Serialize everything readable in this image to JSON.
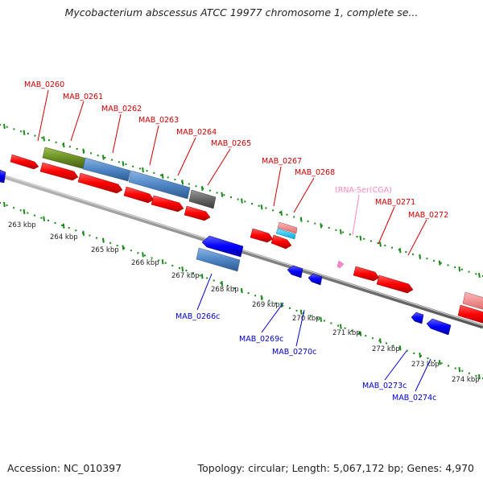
{
  "title": "Mycobacterium abscessus ATCC 19977 chromosome 1, complete se...",
  "footer": {
    "accession": "Accession: NC_010397",
    "summary": "Topology: circular; Length: 5,067,172 bp; Genes: 4,970"
  },
  "colors": {
    "forward_gene": "#ff0000",
    "reverse_gene": "#0000ff",
    "cds_block": "#4f86c6",
    "rrna_green": "#6b8e23",
    "pseudo_grey": "#666666",
    "trna_pink": "#ff88cc",
    "forward_label": "#cc0000",
    "reverse_label": "#0000cc",
    "trna_label": "#ff88bb",
    "tick_green": "#1a8a1a"
  },
  "diagram": {
    "forward_labels": [
      {
        "text": "MAB_0260"
      },
      {
        "text": "MAB_0261"
      },
      {
        "text": "MAB_0262"
      },
      {
        "text": "MAB_0263"
      },
      {
        "text": "MAB_0264"
      },
      {
        "text": "MAB_0265"
      },
      {
        "text": "MAB_0267"
      },
      {
        "text": "MAB_0268"
      },
      {
        "text": "tRNA-Ser(CGA)"
      },
      {
        "text": "MAB_0271"
      },
      {
        "text": "MAB_0272"
      }
    ],
    "reverse_labels": [
      {
        "text": "MAB_0266c"
      },
      {
        "text": "MAB_0269c"
      },
      {
        "text": "MAB_0270c"
      },
      {
        "text": "MAB_0273c"
      },
      {
        "text": "MAB_0274c"
      }
    ],
    "scale_labels": [
      "263 kbp",
      "264 kbp",
      "265 kbp",
      "266 kbp",
      "267 kbp",
      "268 kbp",
      "269 kbp",
      "270 kbp",
      "271 kbp",
      "272 kbp",
      "273 kbp",
      "274 kbp"
    ]
  }
}
